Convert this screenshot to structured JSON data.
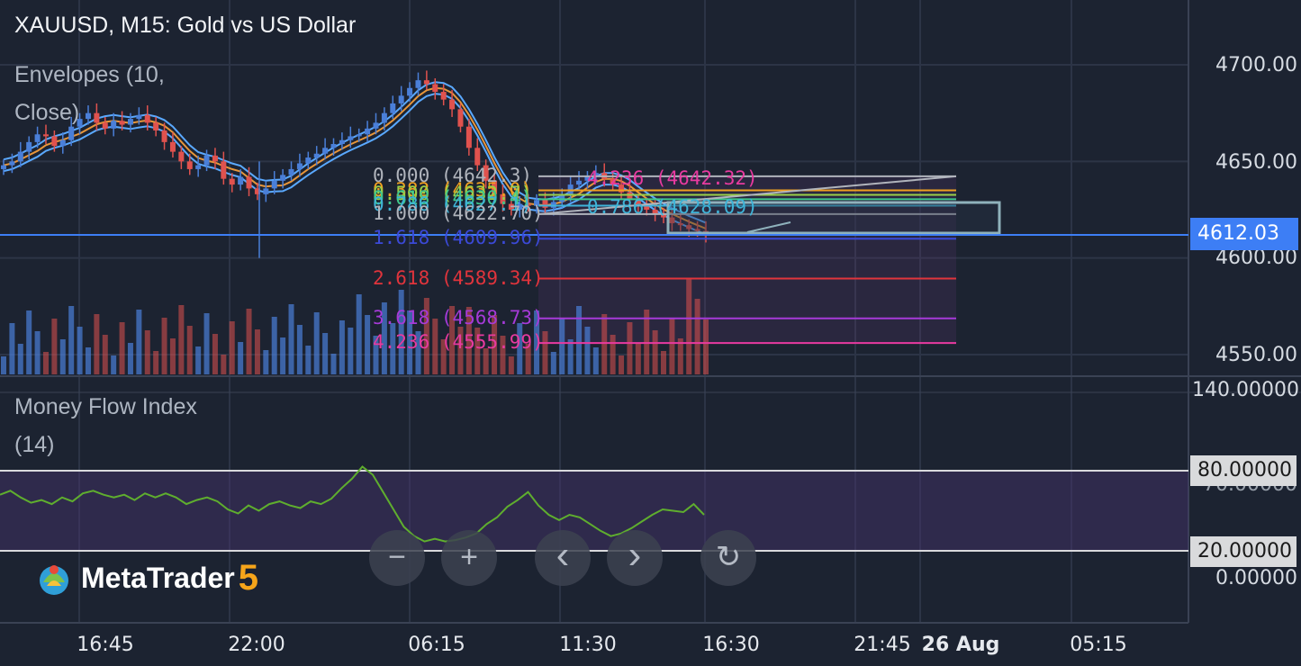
{
  "header": {
    "symbol_title": "XAUUSD, M15: Gold vs US Dollar"
  },
  "indicators": {
    "envelopes": {
      "label_line1": "Envelopes (10,",
      "label_line2": "Close)"
    },
    "mfi": {
      "label_line1": "Money Flow Index",
      "label_line2": "(14)"
    }
  },
  "price_axis": {
    "labels": [
      "4700.00",
      "4650.00",
      "4600.00",
      "4550.00"
    ],
    "current_price": "4612.03",
    "current_color": "#3d7ef5"
  },
  "volume_axis": {
    "top_label": "140.00000"
  },
  "mfi_axis": {
    "level_high": "80.00000",
    "level_high_obscured": "70.00000",
    "level_low": "20.00000",
    "zero_label": "0.00000"
  },
  "time_axis": {
    "labels": [
      {
        "text": "16:45",
        "bold": false
      },
      {
        "text": "22:00",
        "bold": false
      },
      {
        "text": "06:15",
        "bold": false
      },
      {
        "text": "11:30",
        "bold": false
      },
      {
        "text": "16:30",
        "bold": false
      },
      {
        "text": "21:45",
        "bold": false
      },
      {
        "text": "26 Aug",
        "bold": true
      },
      {
        "text": "05:15",
        "bold": false
      }
    ]
  },
  "fibonacci": {
    "levels": [
      {
        "text": "0.000 (4642.3)",
        "color": "#b0b4bc"
      },
      {
        "text": "0.382 (4635.0)",
        "color": "#f0a020"
      },
      {
        "text": "0.500 (4632.7)",
        "color": "#9ad04a"
      },
      {
        "text": "0.618 (4630.4)",
        "color": "#3fc88c"
      },
      {
        "text": "0.786 (4627.1)",
        "color": "#3fb4d8"
      },
      {
        "text": "1.000 (4622.70)",
        "color": "#b0b4bc"
      },
      {
        "text": "1.618 (4609.96)",
        "color": "#3b49d6"
      },
      {
        "text": "2.618 (4589.34)",
        "color": "#e0343c"
      },
      {
        "text": "3.618 (4568.73)",
        "color": "#a63ad8"
      },
      {
        "text": "4.236 (4555.99)",
        "color": "#e83aa0"
      }
    ],
    "ext_levels": [
      {
        "text": "4.236 (4642.32)",
        "color": "#e83aa0"
      },
      {
        "text": "0.786 (4628.09)",
        "color": "#3fb4d8"
      }
    ]
  },
  "navigation": {
    "zoom_out": "−",
    "zoom_in": "+",
    "scroll_left": "‹",
    "scroll_right": "›",
    "reset": "↻"
  },
  "logo": {
    "text": "MetaTrader",
    "version": "5"
  },
  "colors": {
    "background": "#1c2331",
    "bull": "#4a7fd8",
    "bear": "#e0524e",
    "envelope_upper": "#5aa9ff",
    "envelope_lower": "#5aa9ff",
    "ma_mid": "#e7963a",
    "mfi_line": "#5fae2e",
    "grid": "#2c3446"
  },
  "chart_data": {
    "type": "candlestick",
    "title": "XAUUSD, M15: Gold vs US Dollar",
    "price_axis_range": [
      4530,
      4720
    ],
    "price_ticks": [
      4550,
      4600,
      4650,
      4700
    ],
    "current_price": 4612.03,
    "time_ticks": [
      "16:45",
      "22:00",
      "06:15",
      "11:30",
      "16:30",
      "21:45",
      "26 Aug",
      "05:15"
    ],
    "candles_close_series": [
      4648,
      4650,
      4655,
      4660,
      4664,
      4663,
      4658,
      4661,
      4668,
      4672,
      4675,
      4670,
      4667,
      4671,
      4669,
      4672,
      4674,
      4670,
      4666,
      4660,
      4655,
      4650,
      4646,
      4648,
      4653,
      4650,
      4641,
      4638,
      4642,
      4636,
      4633,
      4636,
      4640,
      4643,
      4646,
      4649,
      4652,
      4654,
      4657,
      4659,
      4661,
      4663,
      4664,
      4667,
      4670,
      4675,
      4680,
      4684,
      4688,
      4692,
      4690,
      4686,
      4682,
      4677,
      4668,
      4657,
      4648,
      4640,
      4633,
      4628,
      4625,
      4628,
      4627,
      4630,
      4626,
      4629,
      4633,
      4638,
      4640,
      4642,
      4644,
      4641,
      4638,
      4634,
      4630,
      4627,
      4625,
      4623,
      4621,
      4618,
      4617,
      4615,
      4614,
      4612.03
    ],
    "volume_axis_top": 140,
    "mfi": {
      "name": "Money Flow Index (14)",
      "levels": [
        80,
        20
      ],
      "values": [
        62,
        65,
        60,
        56,
        58,
        55,
        60,
        57,
        63,
        65,
        62,
        60,
        62,
        58,
        63,
        60,
        63,
        60,
        55,
        58,
        60,
        57,
        51,
        48,
        54,
        50,
        55,
        57,
        54,
        52,
        57,
        55,
        59,
        67,
        74,
        83,
        77,
        64,
        51,
        38,
        31,
        27,
        29,
        27,
        28,
        30,
        33,
        40,
        45,
        53,
        58,
        64,
        54,
        47,
        43,
        47,
        45,
        40,
        35,
        31,
        33,
        37,
        42,
        47,
        51,
        50,
        49,
        55,
        47
      ]
    }
  }
}
